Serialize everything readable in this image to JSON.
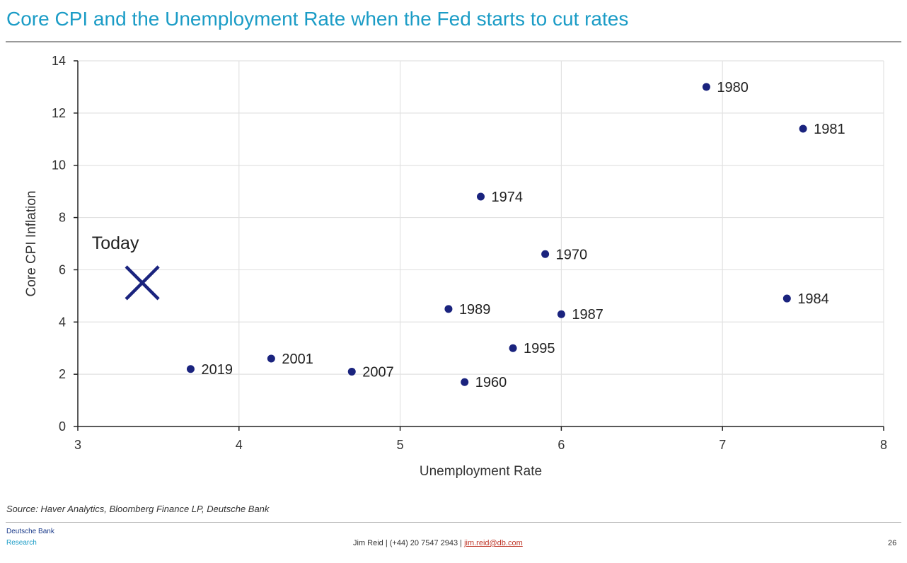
{
  "title": "Core CPI and the Unemployment Rate when the Fed starts to cut rates",
  "chart_data": {
    "type": "scatter",
    "title": "Core CPI and the Unemployment Rate when the Fed starts to cut rates",
    "xlabel": "Unemployment Rate",
    "ylabel": "Core CPI Inflation",
    "xlim": [
      3,
      8
    ],
    "ylim": [
      0,
      14
    ],
    "xticks": [
      3,
      4,
      5,
      6,
      7,
      8
    ],
    "yticks": [
      0,
      2,
      4,
      6,
      8,
      10,
      12,
      14
    ],
    "grid": true,
    "points": [
      {
        "label": "1980",
        "x": 6.9,
        "y": 13.0
      },
      {
        "label": "1981",
        "x": 7.5,
        "y": 11.4
      },
      {
        "label": "1974",
        "x": 5.5,
        "y": 8.8
      },
      {
        "label": "1970",
        "x": 5.9,
        "y": 6.6
      },
      {
        "label": "1984",
        "x": 7.4,
        "y": 4.9
      },
      {
        "label": "1989",
        "x": 5.3,
        "y": 4.5
      },
      {
        "label": "1987",
        "x": 6.0,
        "y": 4.3
      },
      {
        "label": "1995",
        "x": 5.7,
        "y": 3.0
      },
      {
        "label": "2001",
        "x": 4.2,
        "y": 2.6
      },
      {
        "label": "2019",
        "x": 3.7,
        "y": 2.2
      },
      {
        "label": "2007",
        "x": 4.7,
        "y": 2.1
      },
      {
        "label": "1960",
        "x": 5.4,
        "y": 1.7
      }
    ],
    "highlight": {
      "label": "Today",
      "x": 3.4,
      "y": 5.5,
      "marker": "x-icon"
    },
    "colors": {
      "marker": "#1a237e",
      "grid": "#e2e2e2",
      "axis": "#222222"
    }
  },
  "source": "Source: Haver Analytics, Bloomberg Finance LP, Deutsche Bank",
  "footer": {
    "brand_line1": "Deutsche Bank",
    "brand_line2": "Research",
    "contact_prefix": "Jim Reid | (+44) 20 7547 2943 | ",
    "email": "jim.reid@db.com",
    "page": "26"
  }
}
